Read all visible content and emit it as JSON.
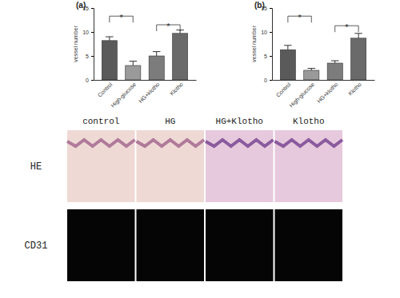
{
  "chart_data": [
    {
      "type": "bar",
      "title": "(a)",
      "y_label": "vessel number",
      "categories": [
        "Control",
        "High-glucose",
        "HG+klotho",
        "Klotho"
      ],
      "values": [
        8.2,
        3.0,
        5.0,
        9.7
      ],
      "errors": [
        0.8,
        0.9,
        0.9,
        0.7
      ],
      "colors": [
        "#5a5a5a",
        "#9a9a9a",
        "#7c7c7c",
        "#6a6a6a"
      ],
      "ylim": [
        0,
        15
      ],
      "yticks": [
        0,
        5,
        10,
        15
      ],
      "annotations": [
        {
          "text": "*",
          "from": 0,
          "to": 1,
          "y": 13.3
        },
        {
          "text": "*",
          "from": 2,
          "to": 3,
          "y": 11.5
        }
      ]
    },
    {
      "type": "bar",
      "title": "(b)",
      "y_label": "vessel number",
      "categories": [
        "Control",
        "High-glucose",
        "HG+klotho",
        "Klotho"
      ],
      "values": [
        6.3,
        2.0,
        3.5,
        8.7
      ],
      "errors": [
        0.9,
        0.4,
        0.5,
        1.0
      ],
      "colors": [
        "#5a5a5a",
        "#9a9a9a",
        "#7c7c7c",
        "#6a6a6a"
      ],
      "ylim": [
        0,
        15
      ],
      "yticks": [
        0,
        5,
        10,
        15
      ],
      "annotations": [
        {
          "text": "*",
          "from": 0,
          "to": 1,
          "y": 13.3
        },
        {
          "text": "*",
          "from": 2,
          "to": 3,
          "y": 11.3
        }
      ]
    }
  ],
  "micrographs": {
    "columns": [
      "control",
      "HG",
      "HG+Klotho",
      "Klotho"
    ],
    "rows": [
      "HE",
      "CD31"
    ]
  }
}
